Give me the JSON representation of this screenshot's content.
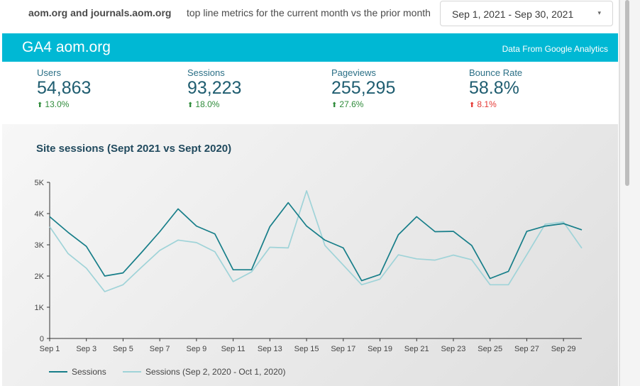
{
  "header": {
    "site_name": "aom.org and journals.aom.org",
    "subtitle": "top line metrics for the current month vs the prior month",
    "date_range": "Sep 1, 2021 - Sep 30, 2021",
    "date_caret": "▾"
  },
  "banner": {
    "title": "GA4 aom.org",
    "source": "Data From Google Analytics",
    "color": "#00b8d4"
  },
  "metrics": [
    {
      "label": "Users",
      "value": "54,863",
      "change": "13.0%",
      "direction": "up",
      "status_color": "#2e8b3a"
    },
    {
      "label": "Sessions",
      "value": "93,223",
      "change": "18.0%",
      "direction": "up",
      "status_color": "#2e8b3a"
    },
    {
      "label": "Pageviews",
      "value": "255,295",
      "change": "27.6%",
      "direction": "up",
      "status_color": "#2e8b3a"
    },
    {
      "label": "Bounce Rate",
      "value": "58.8%",
      "change": "8.1%",
      "direction": "up",
      "status_color": "#e53935"
    }
  ],
  "chart_data": {
    "type": "line",
    "title": "Site sessions (Sept 2021 vs Sept 2020)",
    "xlabel": "",
    "ylabel": "",
    "ylim": [
      0,
      5000
    ],
    "y_ticks": [
      "0",
      "1K",
      "2K",
      "3K",
      "4K",
      "5K"
    ],
    "y_tick_values": [
      0,
      1000,
      2000,
      3000,
      4000,
      5000
    ],
    "x_tick_labels": [
      "Sep 1",
      "Sep 3",
      "Sep 5",
      "Sep 7",
      "Sep 9",
      "Sep 11",
      "Sep 13",
      "Sep 15",
      "Sep 17",
      "Sep 19",
      "Sep 21",
      "Sep 23",
      "Sep 25",
      "Sep 27",
      "Sep 29"
    ],
    "x": [
      1,
      2,
      3,
      4,
      5,
      6,
      7,
      8,
      9,
      10,
      11,
      12,
      13,
      14,
      15,
      16,
      17,
      18,
      19,
      20,
      21,
      22,
      23,
      24,
      25,
      26,
      27,
      28,
      29,
      30
    ],
    "series": [
      {
        "name": "Sessions",
        "color": "#177e89",
        "values": [
          3900,
          3400,
          2950,
          2000,
          2100,
          2750,
          3420,
          4150,
          3600,
          3350,
          2200,
          2200,
          3580,
          4350,
          3600,
          3150,
          2900,
          1850,
          2050,
          3320,
          3900,
          3420,
          3430,
          2980,
          1920,
          2150,
          3430,
          3600,
          3680,
          3480
        ]
      },
      {
        "name": "Sessions (Sep 2, 2020 - Oct 1, 2020)",
        "color": "#9fd3d8",
        "values": [
          3580,
          2720,
          2250,
          1500,
          1720,
          2280,
          2820,
          3150,
          3070,
          2780,
          1820,
          2130,
          2920,
          2900,
          4730,
          2980,
          2350,
          1720,
          1900,
          2680,
          2550,
          2510,
          2670,
          2520,
          1720,
          1720,
          2680,
          3660,
          3730,
          2890
        ]
      }
    ],
    "grid": false,
    "legend": "bottom-left"
  }
}
